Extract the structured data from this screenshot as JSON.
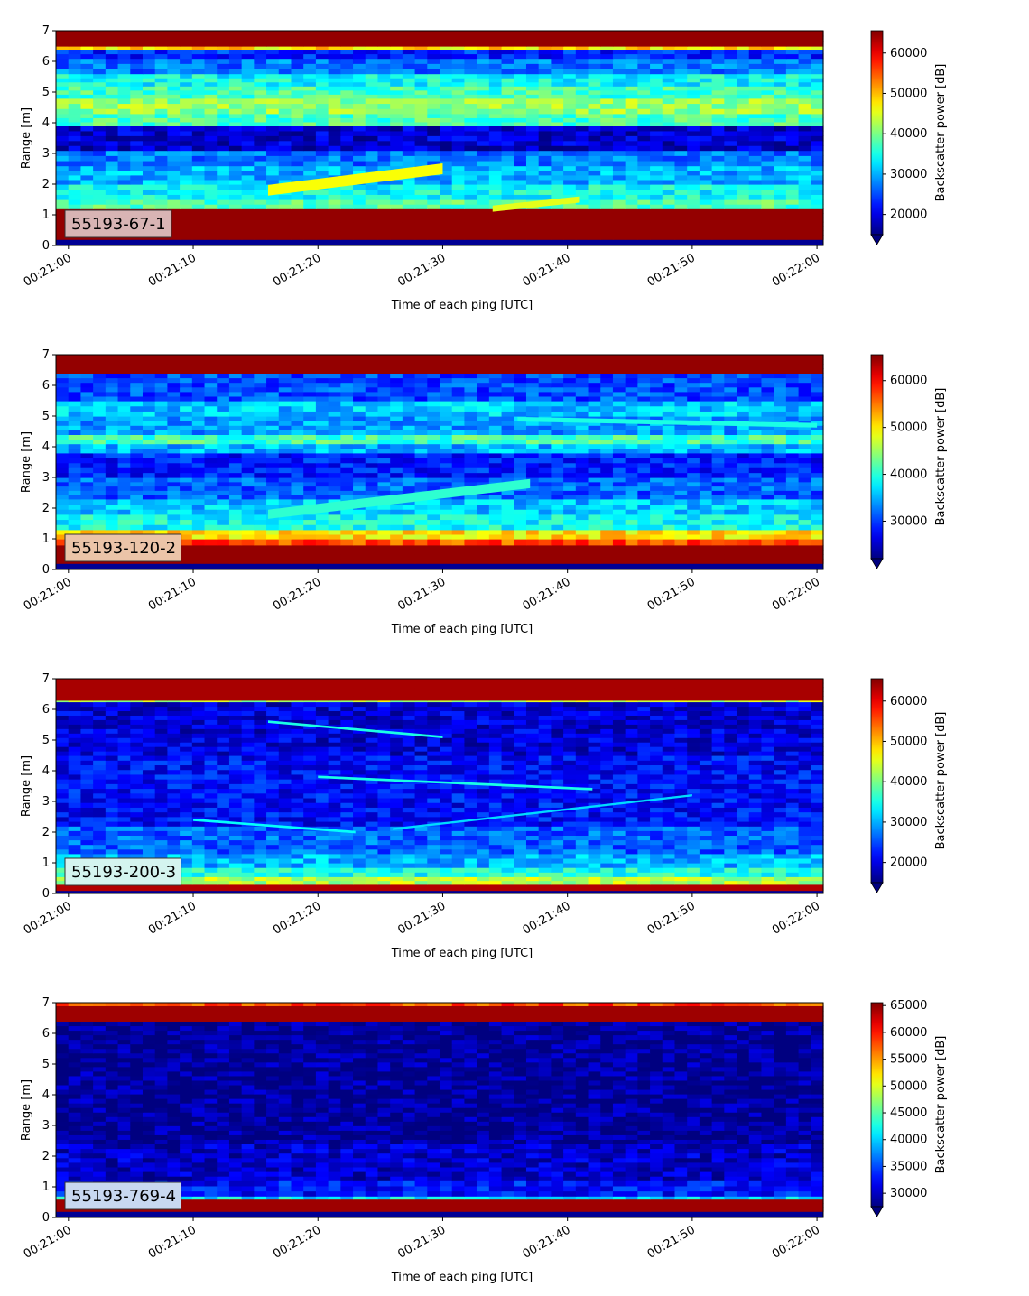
{
  "chart_data": [
    {
      "type": "heatmap",
      "label": "55193-67-1",
      "xlabel": "Time of each ping [UTC]",
      "ylabel": "Range [m]",
      "xticks": [
        "00:21:00",
        "00:21:10",
        "00:21:20",
        "00:21:30",
        "00:21:40",
        "00:21:50",
        "00:22:00"
      ],
      "yticks": [
        "0",
        "1",
        "2",
        "3",
        "4",
        "5",
        "6",
        "7"
      ],
      "x_range_seconds": [
        0,
        60
      ],
      "ylim": [
        0,
        7
      ],
      "colorbar": {
        "label": "Backscatter power [dB]",
        "min": 15000,
        "max": 65535,
        "ticks": [
          "20000",
          "30000",
          "40000",
          "50000",
          "60000"
        ],
        "extend": "min"
      },
      "label_box_color": "#d8b4b4",
      "rows": [
        {
          "y": [
            0.2,
            1.2
          ],
          "v": 0.98
        },
        {
          "y": [
            1.2,
            1.5
          ],
          "v": 0.45
        },
        {
          "y": [
            1.5,
            2.0
          ],
          "v": 0.38
        },
        {
          "y": [
            2.0,
            2.6
          ],
          "v": 0.3
        },
        {
          "y": [
            2.6,
            3.1
          ],
          "v": 0.24
        },
        {
          "y": [
            3.1,
            3.9
          ],
          "v": 0.08
        },
        {
          "y": [
            3.9,
            4.3
          ],
          "v": 0.45
        },
        {
          "y": [
            4.3,
            4.8
          ],
          "v": 0.52
        },
        {
          "y": [
            4.8,
            5.2
          ],
          "v": 0.44
        },
        {
          "y": [
            5.2,
            5.6
          ],
          "v": 0.38
        },
        {
          "y": [
            5.6,
            6.1
          ],
          "v": 0.24
        },
        {
          "y": [
            6.1,
            6.4
          ],
          "v": 0.16
        },
        {
          "y": [
            6.4,
            6.5
          ],
          "v": 0.65
        },
        {
          "y": [
            6.5,
            7.0
          ],
          "v": 0.98
        }
      ],
      "streaks": [
        {
          "t": [
            16,
            30
          ],
          "y": [
            1.8,
            2.5
          ],
          "w": 0.35,
          "v": 0.62
        },
        {
          "t": [
            34,
            41
          ],
          "y": [
            1.2,
            1.5
          ],
          "w": 0.2,
          "v": 0.6
        }
      ]
    },
    {
      "type": "heatmap",
      "label": "55193-120-2",
      "xlabel": "Time of each ping [UTC]",
      "ylabel": "Range [m]",
      "xticks": [
        "00:21:00",
        "00:21:10",
        "00:21:20",
        "00:21:30",
        "00:21:40",
        "00:21:50",
        "00:22:00"
      ],
      "yticks": [
        "0",
        "1",
        "2",
        "3",
        "4",
        "5",
        "6",
        "7"
      ],
      "x_range_seconds": [
        0,
        60
      ],
      "ylim": [
        0,
        7
      ],
      "colorbar": {
        "label": "Backscatter power [dB]",
        "min": 22000,
        "max": 65535,
        "ticks": [
          "30000",
          "40000",
          "50000",
          "60000"
        ],
        "extend": "min"
      },
      "label_box_color": "#ebc4a8",
      "rows": [
        {
          "y": [
            0.2,
            0.8
          ],
          "v": 0.98
        },
        {
          "y": [
            0.8,
            1.0
          ],
          "v": 0.8
        },
        {
          "y": [
            1.0,
            1.3
          ],
          "v": 0.65
        },
        {
          "y": [
            1.3,
            1.8
          ],
          "v": 0.38
        },
        {
          "y": [
            1.8,
            2.3
          ],
          "v": 0.32
        },
        {
          "y": [
            2.3,
            3.0
          ],
          "v": 0.22
        },
        {
          "y": [
            3.0,
            3.8
          ],
          "v": 0.15
        },
        {
          "y": [
            3.8,
            4.1
          ],
          "v": 0.3
        },
        {
          "y": [
            4.1,
            4.4
          ],
          "v": 0.44
        },
        {
          "y": [
            4.4,
            5.0
          ],
          "v": 0.28
        },
        {
          "y": [
            5.0,
            5.5
          ],
          "v": 0.32
        },
        {
          "y": [
            5.5,
            6.4
          ],
          "v": 0.2
        },
        {
          "y": [
            6.4,
            7.0
          ],
          "v": 0.98
        }
      ],
      "streaks": [
        {
          "t": [
            16,
            37
          ],
          "y": [
            1.8,
            2.8
          ],
          "w": 0.3,
          "v": 0.42
        },
        {
          "t": [
            36,
            60
          ],
          "y": [
            4.9,
            4.7
          ],
          "w": 0.15,
          "v": 0.4
        }
      ]
    },
    {
      "type": "heatmap",
      "label": "55193-200-3",
      "xlabel": "Time of each ping [UTC]",
      "ylabel": "Range [m]",
      "xticks": [
        "00:21:00",
        "00:21:10",
        "00:21:20",
        "00:21:30",
        "00:21:40",
        "00:21:50",
        "00:22:00"
      ],
      "yticks": [
        "0",
        "1",
        "2",
        "3",
        "4",
        "5",
        "6",
        "7"
      ],
      "x_range_seconds": [
        0,
        60
      ],
      "ylim": [
        0,
        7
      ],
      "colorbar": {
        "label": "Backscatter power [dB]",
        "min": 15000,
        "max": 65535,
        "ticks": [
          "20000",
          "30000",
          "40000",
          "50000",
          "60000"
        ],
        "extend": "min"
      },
      "label_box_color": "#d4f4ef",
      "rows": [
        {
          "y": [
            0.1,
            0.3
          ],
          "v": 0.95
        },
        {
          "y": [
            0.3,
            0.55
          ],
          "v": 0.55
        },
        {
          "y": [
            0.55,
            0.85
          ],
          "v": 0.4
        },
        {
          "y": [
            0.85,
            1.3
          ],
          "v": 0.3
        },
        {
          "y": [
            1.3,
            2.2
          ],
          "v": 0.22
        },
        {
          "y": [
            2.2,
            4.5
          ],
          "v": 0.13
        },
        {
          "y": [
            4.5,
            6.25
          ],
          "v": 0.09
        },
        {
          "y": [
            6.25,
            6.3
          ],
          "v": 0.55
        },
        {
          "y": [
            6.3,
            7.0
          ],
          "v": 0.96
        }
      ],
      "streaks": [
        {
          "t": [
            16,
            30
          ],
          "y": [
            5.6,
            5.1
          ],
          "w": 0.08,
          "v": 0.4
        },
        {
          "t": [
            20,
            42
          ],
          "y": [
            3.8,
            3.4
          ],
          "w": 0.08,
          "v": 0.4
        },
        {
          "t": [
            10,
            23
          ],
          "y": [
            2.4,
            2.0
          ],
          "w": 0.08,
          "v": 0.38
        },
        {
          "t": [
            26,
            50
          ],
          "y": [
            2.1,
            3.2
          ],
          "w": 0.07,
          "v": 0.34
        }
      ]
    },
    {
      "type": "heatmap",
      "label": "55193-769-4",
      "xlabel": "Time of each ping [UTC]",
      "ylabel": "Range [m]",
      "xticks": [
        "00:21:00",
        "00:21:10",
        "00:21:20",
        "00:21:30",
        "00:21:40",
        "00:21:50",
        "00:22:00"
      ],
      "yticks": [
        "0",
        "1",
        "2",
        "3",
        "4",
        "5",
        "6",
        "7"
      ],
      "x_range_seconds": [
        0,
        60
      ],
      "ylim": [
        0,
        7
      ],
      "colorbar": {
        "label": "Backscatter power [dB]",
        "min": 27500,
        "max": 65535,
        "ticks": [
          "30000",
          "35000",
          "40000",
          "45000",
          "50000",
          "55000",
          "60000",
          "65000"
        ],
        "extend": "min"
      },
      "label_box_color": "#c8d8f0",
      "rows": [
        {
          "y": [
            0.2,
            0.6
          ],
          "v": 0.97
        },
        {
          "y": [
            0.6,
            0.7
          ],
          "v": 0.35
        },
        {
          "y": [
            0.7,
            1.2
          ],
          "v": 0.14
        },
        {
          "y": [
            1.2,
            2.4
          ],
          "v": 0.07
        },
        {
          "y": [
            2.4,
            6.4
          ],
          "v": 0.02
        },
        {
          "y": [
            6.4,
            6.9
          ],
          "v": 0.97
        },
        {
          "y": [
            6.9,
            7.0
          ],
          "v": 0.8
        }
      ],
      "streaks": []
    }
  ]
}
